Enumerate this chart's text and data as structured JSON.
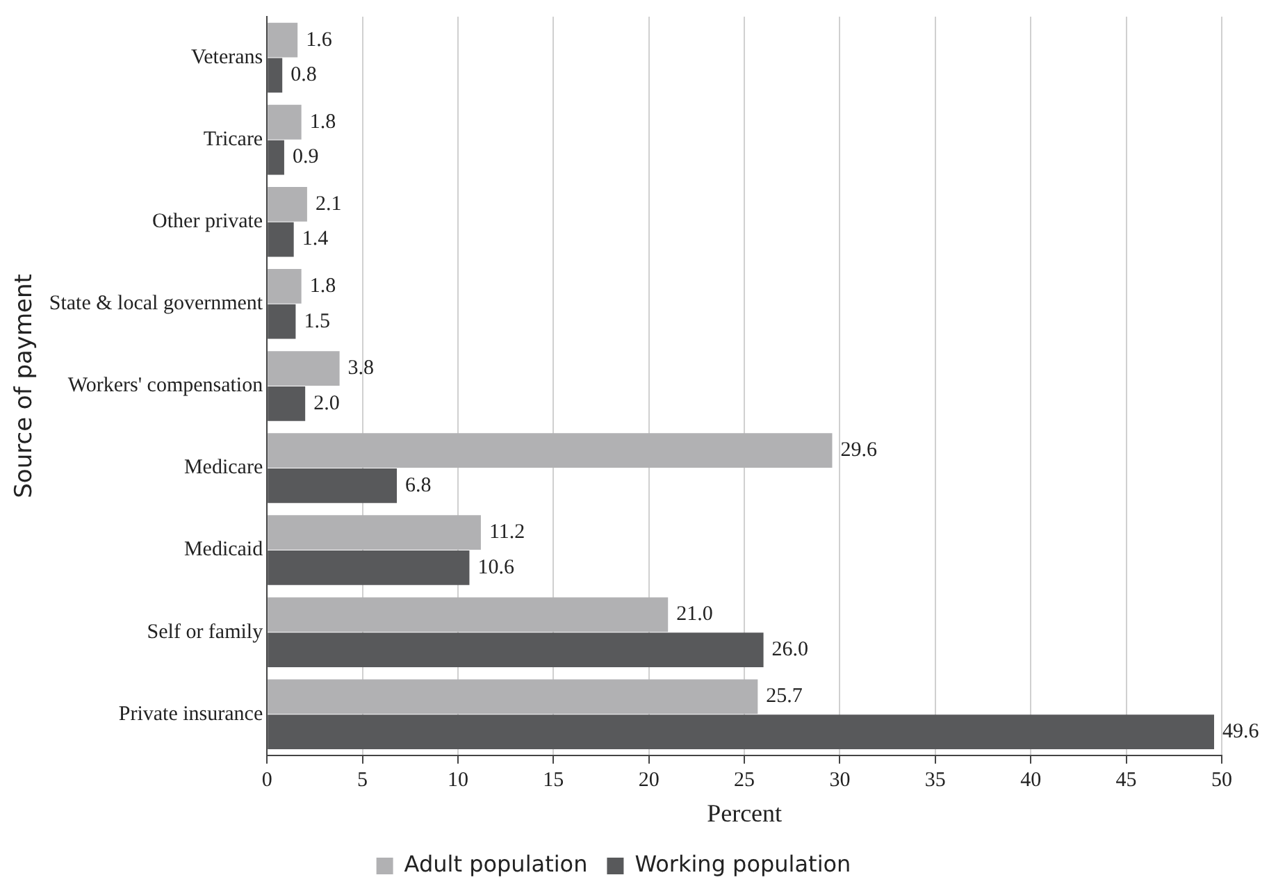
{
  "chart_data": {
    "type": "bar",
    "orientation": "horizontal",
    "xlabel": "Percent",
    "ylabel": "Source of payment",
    "categories": [
      "Veterans",
      "Tricare",
      "Other private",
      "State & local government",
      "Workers' compensation",
      "Medicare",
      "Medicaid",
      "Self or family",
      "Private insurance"
    ],
    "series": [
      {
        "name": "Adult population",
        "color": "#b1b1b3",
        "values": [
          1.6,
          1.8,
          2.1,
          1.8,
          3.8,
          29.6,
          11.2,
          21.0,
          25.7
        ],
        "value_labels": [
          "1.6",
          "1.8",
          "2.1",
          "1.8",
          "3.8",
          "29.6",
          "11.2",
          "21.0",
          "25.7"
        ]
      },
      {
        "name": "Working population",
        "color": "#58595b",
        "values": [
          0.8,
          0.9,
          1.4,
          1.5,
          2.0,
          6.8,
          10.6,
          26.0,
          49.6
        ],
        "value_labels": [
          "0.8",
          "0.9",
          "1.4",
          "1.5",
          "2.0",
          "6.8",
          "10.6",
          "26.0",
          "49.6"
        ]
      }
    ],
    "xlim": [
      0,
      50
    ],
    "xticks": [
      0,
      5,
      10,
      15,
      20,
      25,
      30,
      35,
      40,
      45,
      50
    ],
    "grid": "x",
    "legend": "bottom"
  }
}
